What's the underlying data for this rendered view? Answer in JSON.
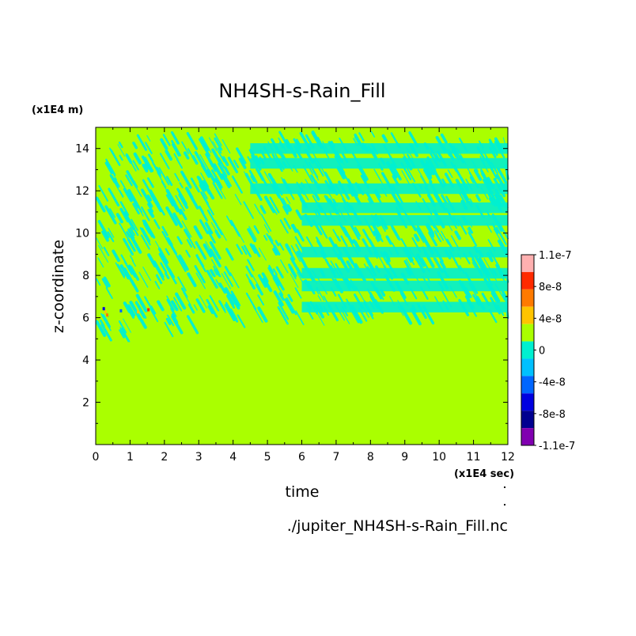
{
  "chart_data": {
    "type": "heatmap",
    "title": "NH4SH-s-Rain_Fill",
    "xlabel": "time",
    "ylabel": "z-coordinate",
    "x_unit": "(x1E4 sec)",
    "y_unit": "(x1E4 m)",
    "xlim": [
      0,
      12
    ],
    "ylim": [
      0,
      15
    ],
    "x_ticks": [
      "0",
      "1",
      "2",
      "3",
      "4",
      "5",
      "6",
      "7",
      "8",
      "9",
      "10",
      "11",
      "12"
    ],
    "y_ticks": [
      "2",
      "4",
      "6",
      "8",
      "10",
      "12",
      "14"
    ],
    "source_file": "./jupiter_NH4SH-s-Rain_Fill.nc",
    "colorbar": {
      "labels": [
        "1.1e-7",
        "8e-8",
        "4e-8",
        "0",
        "-4e-8",
        "-8e-8",
        "-1.1e-7"
      ],
      "colors": [
        "#ffb0b0",
        "#ff2a00",
        "#ff7a00",
        "#ffc400",
        "#aaff00",
        "#00f0d0",
        "#00c0ff",
        "#0066ff",
        "#0000e0",
        "#000090",
        "#8000b0"
      ]
    },
    "colors": {
      "background": "#aaff00",
      "negative_small": "#00f0d0",
      "positive_small": "#ffc400",
      "positive_mid": "#ff7a00",
      "positive_high": "#ff2a00",
      "negative_mid": "#0066ff",
      "negative_high": "#0000e0"
    },
    "features": {
      "quiescent_below_z": 6.3,
      "active_region_z": [
        5,
        15
      ],
      "stratified_bands_after_x": 6,
      "bands_z": [
        6.5,
        7.5,
        8.1,
        9.1,
        10.6,
        11.2,
        12.1,
        13.3,
        14.0
      ]
    }
  }
}
